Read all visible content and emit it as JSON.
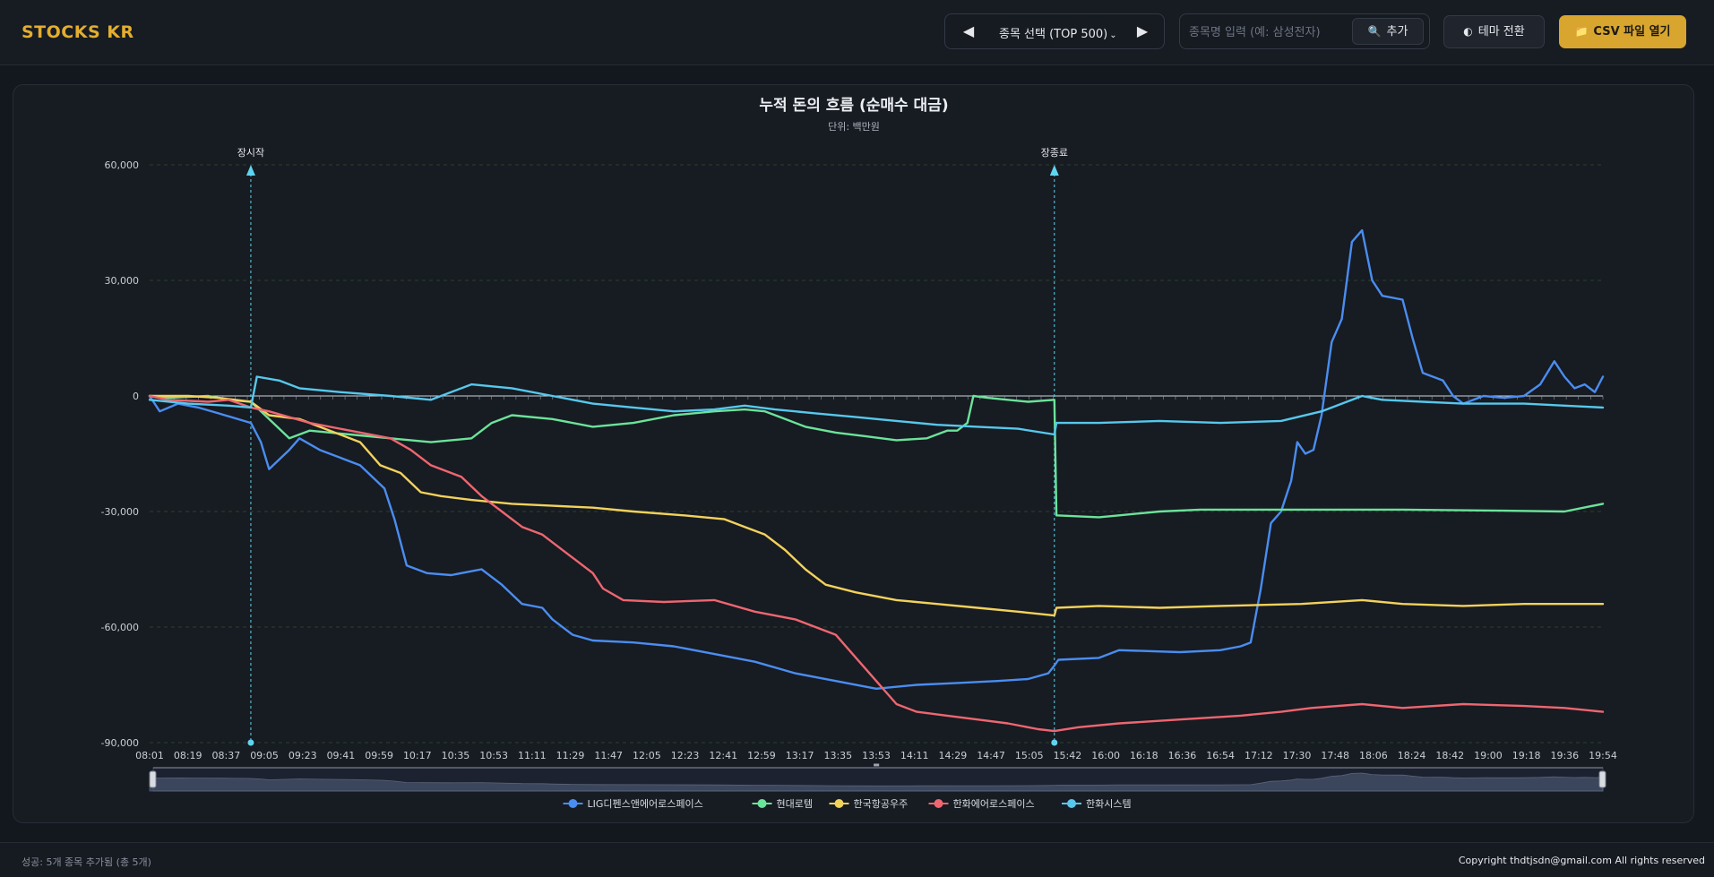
{
  "header": {
    "logo": "STOCKS KR",
    "stock_select_label": "종목 선택 (TOP 500)",
    "search_placeholder": "종목명 입력 (예: 삼성전자)",
    "add_label": "추가",
    "theme_label": "테마 전환",
    "csv_label": "CSV 파일 열기"
  },
  "footer": {
    "status": "성공: 5개 종목 추가됨 (총 5개)",
    "copyright": "Copyright thdtjsdn@gmail.com All rights reserved"
  },
  "colors": {
    "LIG디펜스앤에어로스페이스": "#4a8df0",
    "현대로템": "#6be39a",
    "한국항공우주": "#f2d25b",
    "한화에어로스페이스": "#ee6670",
    "한화시스템": "#56c8ec",
    "marker": "#5fd4ef"
  },
  "chart_data": {
    "type": "line",
    "title": "누적 돈의 흐름 (순매수 대금)",
    "subtitle": "단위: 백만원",
    "ylim": [
      -90000,
      60000
    ],
    "yticks": [
      60000,
      30000,
      0,
      -30000,
      -60000,
      -90000
    ],
    "ytick_labels": [
      "60,000",
      "30,000",
      "0",
      "-30,000",
      "-60,000",
      "-90,000"
    ],
    "xlim": [
      481,
      1199
    ],
    "xtick_labels": [
      "08:01",
      "08:19",
      "08:37",
      "09:05",
      "09:23",
      "09:41",
      "09:59",
      "10:17",
      "10:35",
      "10:53",
      "11:11",
      "11:29",
      "11:47",
      "12:05",
      "12:23",
      "12:41",
      "12:59",
      "13:17",
      "13:35",
      "13:53",
      "14:11",
      "14:29",
      "14:47",
      "15:05",
      "15:42",
      "16:00",
      "16:18",
      "16:36",
      "16:54",
      "17:12",
      "17:30",
      "17:48",
      "18:06",
      "18:24",
      "18:42",
      "19:00",
      "19:18",
      "19:36",
      "19:54"
    ],
    "x_unit": "minutes since 00:00",
    "markers": [
      {
        "label": "장시작",
        "x": 531
      },
      {
        "label": "장종료",
        "x": 928
      }
    ],
    "legend_position": "bottom-center",
    "grid": true,
    "series": [
      {
        "name": "LIG디펜스앤에어로스페이스",
        "points": [
          [
            481,
            0
          ],
          [
            486,
            -4000
          ],
          [
            495,
            -2000
          ],
          [
            505,
            -3000
          ],
          [
            515,
            -4500
          ],
          [
            531,
            -7000
          ],
          [
            536,
            -12000
          ],
          [
            540,
            -19000
          ],
          [
            550,
            -14000
          ],
          [
            555,
            -11000
          ],
          [
            565,
            -14000
          ],
          [
            575,
            -16000
          ],
          [
            585,
            -18000
          ],
          [
            597,
            -24000
          ],
          [
            602,
            -32000
          ],
          [
            608,
            -44000
          ],
          [
            618,
            -46000
          ],
          [
            630,
            -46500
          ],
          [
            645,
            -45000
          ],
          [
            655,
            -49000
          ],
          [
            665,
            -54000
          ],
          [
            675,
            -55000
          ],
          [
            680,
            -58000
          ],
          [
            690,
            -62000
          ],
          [
            700,
            -63500
          ],
          [
            720,
            -64000
          ],
          [
            740,
            -65000
          ],
          [
            760,
            -67000
          ],
          [
            780,
            -69000
          ],
          [
            800,
            -72000
          ],
          [
            820,
            -74000
          ],
          [
            840,
            -76000
          ],
          [
            860,
            -75000
          ],
          [
            880,
            -74500
          ],
          [
            900,
            -74000
          ],
          [
            915,
            -73500
          ],
          [
            925,
            -72000
          ],
          [
            928,
            -70000
          ],
          [
            930,
            -68500
          ],
          [
            950,
            -68000
          ],
          [
            960,
            -66000
          ],
          [
            990,
            -66500
          ],
          [
            1010,
            -66000
          ],
          [
            1020,
            -65000
          ],
          [
            1025,
            -64000
          ],
          [
            1030,
            -50000
          ],
          [
            1035,
            -33000
          ],
          [
            1040,
            -30000
          ],
          [
            1045,
            -22000
          ],
          [
            1048,
            -12000
          ],
          [
            1052,
            -15000
          ],
          [
            1056,
            -14000
          ],
          [
            1060,
            -5000
          ],
          [
            1065,
            14000
          ],
          [
            1070,
            20000
          ],
          [
            1075,
            40000
          ],
          [
            1080,
            43000
          ],
          [
            1085,
            30000
          ],
          [
            1090,
            26000
          ],
          [
            1100,
            25000
          ],
          [
            1105,
            15000
          ],
          [
            1110,
            6000
          ],
          [
            1115,
            5000
          ],
          [
            1120,
            4000
          ],
          [
            1125,
            0
          ],
          [
            1130,
            -2000
          ],
          [
            1140,
            0
          ],
          [
            1150,
            -500
          ],
          [
            1160,
            0
          ],
          [
            1168,
            3000
          ],
          [
            1175,
            9000
          ],
          [
            1180,
            5000
          ],
          [
            1185,
            2000
          ],
          [
            1190,
            3000
          ],
          [
            1195,
            1000
          ],
          [
            1199,
            5000
          ]
        ]
      },
      {
        "name": "현대로템",
        "points": [
          [
            481,
            0
          ],
          [
            490,
            -500
          ],
          [
            510,
            0
          ],
          [
            520,
            -1000
          ],
          [
            531,
            -1500
          ],
          [
            540,
            -6000
          ],
          [
            550,
            -11000
          ],
          [
            560,
            -9000
          ],
          [
            580,
            -10000
          ],
          [
            600,
            -11000
          ],
          [
            620,
            -12000
          ],
          [
            640,
            -11000
          ],
          [
            650,
            -7000
          ],
          [
            660,
            -5000
          ],
          [
            680,
            -6000
          ],
          [
            700,
            -8000
          ],
          [
            720,
            -7000
          ],
          [
            740,
            -5000
          ],
          [
            760,
            -4000
          ],
          [
            775,
            -3500
          ],
          [
            785,
            -4000
          ],
          [
            795,
            -6000
          ],
          [
            805,
            -8000
          ],
          [
            820,
            -9500
          ],
          [
            835,
            -10500
          ],
          [
            850,
            -11500
          ],
          [
            865,
            -11000
          ],
          [
            875,
            -9000
          ],
          [
            880,
            -9000
          ],
          [
            885,
            -7000
          ],
          [
            888,
            0
          ],
          [
            895,
            -500
          ],
          [
            905,
            -1000
          ],
          [
            915,
            -1500
          ],
          [
            928,
            -1000
          ],
          [
            929,
            -31000
          ],
          [
            950,
            -31500
          ],
          [
            960,
            -31000
          ],
          [
            980,
            -30000
          ],
          [
            1000,
            -29500
          ],
          [
            1050,
            -29500
          ],
          [
            1100,
            -29500
          ],
          [
            1150,
            -29800
          ],
          [
            1180,
            -30000
          ],
          [
            1199,
            -28000
          ]
        ]
      },
      {
        "name": "한국항공우주",
        "points": [
          [
            481,
            0
          ],
          [
            490,
            0
          ],
          [
            500,
            0
          ],
          [
            515,
            -500
          ],
          [
            531,
            -1500
          ],
          [
            540,
            -5000
          ],
          [
            555,
            -6000
          ],
          [
            570,
            -9000
          ],
          [
            585,
            -12000
          ],
          [
            595,
            -18000
          ],
          [
            605,
            -20000
          ],
          [
            615,
            -25000
          ],
          [
            625,
            -26000
          ],
          [
            640,
            -27000
          ],
          [
            660,
            -28000
          ],
          [
            680,
            -28500
          ],
          [
            700,
            -29000
          ],
          [
            720,
            -30000
          ],
          [
            745,
            -31000
          ],
          [
            765,
            -32000
          ],
          [
            775,
            -34000
          ],
          [
            785,
            -36000
          ],
          [
            795,
            -40000
          ],
          [
            805,
            -45000
          ],
          [
            815,
            -49000
          ],
          [
            830,
            -51000
          ],
          [
            850,
            -53000
          ],
          [
            870,
            -54000
          ],
          [
            890,
            -55000
          ],
          [
            910,
            -56000
          ],
          [
            928,
            -57000
          ],
          [
            929,
            -55000
          ],
          [
            950,
            -54500
          ],
          [
            980,
            -55000
          ],
          [
            1010,
            -54500
          ],
          [
            1050,
            -54000
          ],
          [
            1080,
            -53000
          ],
          [
            1100,
            -54000
          ],
          [
            1130,
            -54500
          ],
          [
            1160,
            -54000
          ],
          [
            1199,
            -54000
          ]
        ]
      },
      {
        "name": "한화에어로스페이스",
        "points": [
          [
            481,
            0
          ],
          [
            490,
            -1000
          ],
          [
            510,
            -1500
          ],
          [
            520,
            -1000
          ],
          [
            531,
            -3000
          ],
          [
            540,
            -4000
          ],
          [
            560,
            -7000
          ],
          [
            580,
            -9000
          ],
          [
            600,
            -11000
          ],
          [
            610,
            -14000
          ],
          [
            620,
            -18000
          ],
          [
            635,
            -21000
          ],
          [
            645,
            -26000
          ],
          [
            655,
            -30000
          ],
          [
            665,
            -34000
          ],
          [
            675,
            -36000
          ],
          [
            690,
            -42000
          ],
          [
            700,
            -46000
          ],
          [
            705,
            -50000
          ],
          [
            715,
            -53000
          ],
          [
            735,
            -53500
          ],
          [
            760,
            -53000
          ],
          [
            780,
            -56000
          ],
          [
            800,
            -58000
          ],
          [
            820,
            -62000
          ],
          [
            830,
            -68000
          ],
          [
            840,
            -74000
          ],
          [
            850,
            -80000
          ],
          [
            860,
            -82000
          ],
          [
            875,
            -83000
          ],
          [
            890,
            -84000
          ],
          [
            905,
            -85000
          ],
          [
            920,
            -86500
          ],
          [
            928,
            -87000
          ],
          [
            940,
            -86000
          ],
          [
            960,
            -85000
          ],
          [
            990,
            -84000
          ],
          [
            1020,
            -83000
          ],
          [
            1040,
            -82000
          ],
          [
            1055,
            -81000
          ],
          [
            1080,
            -80000
          ],
          [
            1100,
            -81000
          ],
          [
            1130,
            -80000
          ],
          [
            1160,
            -80500
          ],
          [
            1180,
            -81000
          ],
          [
            1199,
            -82000
          ]
        ]
      },
      {
        "name": "한화시스템",
        "points": [
          [
            481,
            -1000
          ],
          [
            500,
            -2000
          ],
          [
            520,
            -2500
          ],
          [
            531,
            -3000
          ],
          [
            534,
            5000
          ],
          [
            545,
            4000
          ],
          [
            555,
            2000
          ],
          [
            575,
            1000
          ],
          [
            600,
            0
          ],
          [
            620,
            -1000
          ],
          [
            640,
            3000
          ],
          [
            660,
            2000
          ],
          [
            680,
            0
          ],
          [
            700,
            -2000
          ],
          [
            720,
            -3000
          ],
          [
            740,
            -4000
          ],
          [
            760,
            -3500
          ],
          [
            775,
            -2500
          ],
          [
            790,
            -3500
          ],
          [
            810,
            -4500
          ],
          [
            830,
            -5500
          ],
          [
            850,
            -6500
          ],
          [
            870,
            -7500
          ],
          [
            890,
            -8000
          ],
          [
            910,
            -8500
          ],
          [
            928,
            -10000
          ],
          [
            929,
            -7000
          ],
          [
            950,
            -7000
          ],
          [
            980,
            -6500
          ],
          [
            1010,
            -7000
          ],
          [
            1040,
            -6500
          ],
          [
            1060,
            -4000
          ],
          [
            1070,
            -2000
          ],
          [
            1080,
            0
          ],
          [
            1090,
            -1000
          ],
          [
            1110,
            -1500
          ],
          [
            1130,
            -2000
          ],
          [
            1160,
            -2000
          ],
          [
            1180,
            -2500
          ],
          [
            1199,
            -3000
          ]
        ]
      }
    ]
  }
}
